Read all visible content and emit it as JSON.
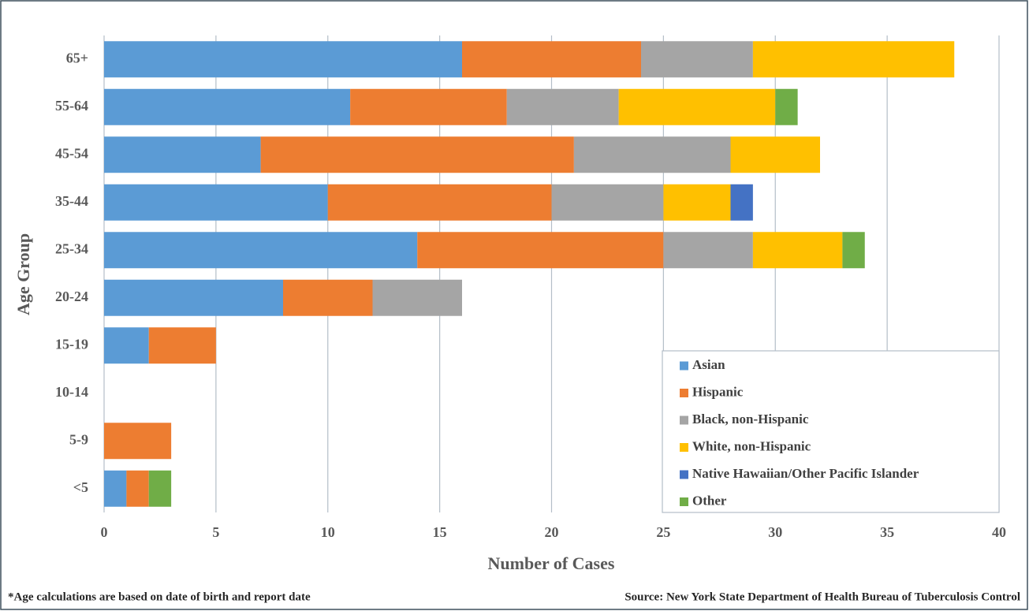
{
  "chart_data": {
    "type": "stacked-barh",
    "x_label": "Number of Cases",
    "y_label": "Age Group",
    "footnote": "*Age calculations are based on date of birth and report date",
    "source": "Source: New York State Department of Health Bureau of Tuberculosis Control",
    "categories": [
      "65+",
      "55-64",
      "45-54",
      "35-44",
      "25-34",
      "20-24",
      "15-19",
      "10-14",
      "5-9",
      "<5"
    ],
    "series": [
      {
        "name": "Asian",
        "color": "#5b9bd5",
        "values": [
          16,
          11,
          7,
          10,
          14,
          8,
          2,
          0,
          0,
          1
        ]
      },
      {
        "name": "Hispanic",
        "color": "#ed7d31",
        "values": [
          8,
          7,
          14,
          10,
          11,
          4,
          3,
          0,
          3,
          1
        ]
      },
      {
        "name": "Black, non-Hispanic",
        "color": "#a5a5a5",
        "values": [
          5,
          5,
          7,
          5,
          4,
          4,
          0,
          0,
          0,
          0
        ]
      },
      {
        "name": "White, non-Hispanic",
        "color": "#ffc000",
        "values": [
          9,
          7,
          4,
          3,
          4,
          0,
          0,
          0,
          0,
          0
        ]
      },
      {
        "name": "Native Hawaiian/Other Pacific Islander",
        "color": "#4472c4",
        "values": [
          0,
          0,
          0,
          1,
          0,
          0,
          0,
          0,
          0,
          0
        ]
      },
      {
        "name": "Other",
        "color": "#70ad47",
        "values": [
          0,
          1,
          0,
          0,
          1,
          0,
          0,
          0,
          0,
          1
        ]
      }
    ],
    "xlim": [
      0,
      40
    ],
    "xticks": [
      0,
      5,
      10,
      15,
      20,
      25,
      30,
      35,
      40
    ],
    "grid": true,
    "legend": "lower right"
  }
}
